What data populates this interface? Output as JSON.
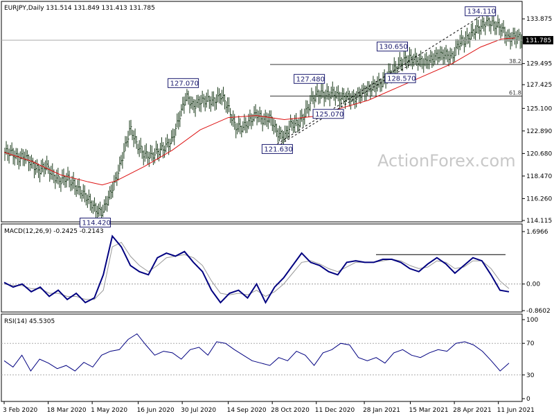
{
  "chart_data": [
    {
      "type": "candlestick",
      "header": "EURJPY,Daily  131.514 131.849 131.413 131.785",
      "symbol": "EURJPY",
      "timeframe": "Daily",
      "last_price": "131.785",
      "y_ticks": [
        "133.875",
        "131.785",
        "129.495",
        "127.425",
        "125.100",
        "122.890",
        "120.680",
        "118.470",
        "116.260",
        "114.115"
      ],
      "ylim": [
        114.115,
        134.5
      ],
      "x_ticks": [
        "3 Feb 2020",
        "18 Mar 2020",
        "1 May 2020",
        "16 Jun 2020",
        "30 Jul 2020",
        "14 Sep 2020",
        "28 Oct 2020",
        "11 Dec 2020",
        "28 Jan 2021",
        "15 Mar 2021",
        "28 Apr 2021",
        "11 Jun 2021"
      ],
      "annotations": [
        {
          "text": "114.420",
          "x": "4 May 2020",
          "y": 114.42
        },
        {
          "text": "127.070",
          "x": "31 Jul 2020",
          "y": 127.07
        },
        {
          "text": "121.630",
          "x": "2 Nov 2020",
          "y": 121.63
        },
        {
          "text": "127.480",
          "x": "4 Dec 2020",
          "y": 127.48
        },
        {
          "text": "125.070",
          "x": "23 Dec 2020",
          "y": 125.07
        },
        {
          "text": "130.650",
          "x": "25 Feb 2021",
          "y": 130.65
        },
        {
          "text": "128.570",
          "x": "5 Mar 2021",
          "y": 128.57
        },
        {
          "text": "134.110",
          "x": "24 May 2021",
          "y": 134.11
        }
      ],
      "fib_levels": [
        {
          "label": "38.2",
          "value": 129.4
        },
        {
          "label": "61.8",
          "value": 126.3
        }
      ],
      "watermark": "ActionForex.com",
      "close_series": [
        {
          "date": "3 Feb 2020",
          "value": 120.8
        },
        {
          "date": "10 Feb 2020",
          "value": 120.2
        },
        {
          "date": "17 Feb 2020",
          "value": 120.4
        },
        {
          "date": "24 Feb 2020",
          "value": 119.6
        },
        {
          "date": "2 Mar 2020",
          "value": 119.0
        },
        {
          "date": "9 Mar 2020",
          "value": 119.5
        },
        {
          "date": "16 Mar 2020",
          "value": 118.5
        },
        {
          "date": "23 Mar 2020",
          "value": 118.0
        },
        {
          "date": "30 Mar 2020",
          "value": 118.3
        },
        {
          "date": "6 Apr 2020",
          "value": 117.6
        },
        {
          "date": "13 Apr 2020",
          "value": 116.9
        },
        {
          "date": "20 Apr 2020",
          "value": 116.2
        },
        {
          "date": "27 Apr 2020",
          "value": 115.2
        },
        {
          "date": "4 May 2020",
          "value": 114.9
        },
        {
          "date": "11 May 2020",
          "value": 116.5
        },
        {
          "date": "18 May 2020",
          "value": 118.2
        },
        {
          "date": "25 May 2020",
          "value": 120.6
        },
        {
          "date": "1 Jun 2020",
          "value": 123.2
        },
        {
          "date": "8 Jun 2020",
          "value": 121.5
        },
        {
          "date": "15 Jun 2020",
          "value": 120.6
        },
        {
          "date": "22 Jun 2020",
          "value": 120.4
        },
        {
          "date": "29 Jun 2020",
          "value": 120.9
        },
        {
          "date": "6 Jul 2020",
          "value": 121.3
        },
        {
          "date": "13 Jul 2020",
          "value": 122.0
        },
        {
          "date": "20 Jul 2020",
          "value": 124.2
        },
        {
          "date": "27 Jul 2020",
          "value": 126.3
        },
        {
          "date": "3 Aug 2020",
          "value": 125.3
        },
        {
          "date": "10 Aug 2020",
          "value": 125.8
        },
        {
          "date": "17 Aug 2020",
          "value": 125.9
        },
        {
          "date": "24 Aug 2020",
          "value": 125.8
        },
        {
          "date": "31 Aug 2020",
          "value": 126.4
        },
        {
          "date": "7 Sep 2020",
          "value": 125.2
        },
        {
          "date": "14 Sep 2020",
          "value": 123.3
        },
        {
          "date": "21 Sep 2020",
          "value": 123.2
        },
        {
          "date": "28 Sep 2020",
          "value": 123.8
        },
        {
          "date": "5 Oct 2020",
          "value": 124.6
        },
        {
          "date": "12 Oct 2020",
          "value": 123.9
        },
        {
          "date": "19 Oct 2020",
          "value": 124.2
        },
        {
          "date": "26 Oct 2020",
          "value": 122.7
        },
        {
          "date": "2 Nov 2020",
          "value": 122.3
        },
        {
          "date": "9 Nov 2020",
          "value": 123.6
        },
        {
          "date": "16 Nov 2020",
          "value": 123.6
        },
        {
          "date": "23 Nov 2020",
          "value": 124.6
        },
        {
          "date": "30 Nov 2020",
          "value": 126.1
        },
        {
          "date": "7 Dec 2020",
          "value": 126.6
        },
        {
          "date": "14 Dec 2020",
          "value": 126.4
        },
        {
          "date": "21 Dec 2020",
          "value": 126.6
        },
        {
          "date": "28 Dec 2020",
          "value": 126.2
        },
        {
          "date": "4 Jan 2021",
          "value": 126.2
        },
        {
          "date": "11 Jan 2021",
          "value": 126.0
        },
        {
          "date": "18 Jan 2021",
          "value": 126.6
        },
        {
          "date": "25 Jan 2021",
          "value": 126.9
        },
        {
          "date": "1 Feb 2021",
          "value": 127.4
        },
        {
          "date": "8 Feb 2021",
          "value": 127.6
        },
        {
          "date": "15 Feb 2021",
          "value": 128.5
        },
        {
          "date": "22 Feb 2021",
          "value": 129.1
        },
        {
          "date": "1 Mar 2021",
          "value": 129.8
        },
        {
          "date": "8 Mar 2021",
          "value": 130.0
        },
        {
          "date": "15 Mar 2021",
          "value": 129.8
        },
        {
          "date": "22 Mar 2021",
          "value": 129.6
        },
        {
          "date": "29 Mar 2021",
          "value": 129.9
        },
        {
          "date": "5 Apr 2021",
          "value": 130.3
        },
        {
          "date": "12 Apr 2021",
          "value": 130.4
        },
        {
          "date": "19 Apr 2021",
          "value": 130.1
        },
        {
          "date": "26 Apr 2021",
          "value": 131.6
        },
        {
          "date": "3 May 2021",
          "value": 131.8
        },
        {
          "date": "10 May 2021",
          "value": 132.6
        },
        {
          "date": "17 May 2021",
          "value": 133.1
        },
        {
          "date": "24 May 2021",
          "value": 133.6
        },
        {
          "date": "31 May 2021",
          "value": 133.3
        },
        {
          "date": "7 Jun 2021",
          "value": 133.0
        },
        {
          "date": "14 Jun 2021",
          "value": 131.9
        },
        {
          "date": "21 Jun 2021",
          "value": 132.2
        },
        {
          "date": "28 Jun 2021",
          "value": 131.8
        }
      ],
      "ma_series": [
        {
          "date": "3 Feb 2020",
          "value": 120.8
        },
        {
          "date": "2 Mar 2020",
          "value": 119.9
        },
        {
          "date": "30 Mar 2020",
          "value": 118.6
        },
        {
          "date": "27 Apr 2020",
          "value": 117.9
        },
        {
          "date": "11 May 2020",
          "value": 117.6
        },
        {
          "date": "25 May 2020",
          "value": 118.0
        },
        {
          "date": "22 Jun 2020",
          "value": 119.4
        },
        {
          "date": "20 Jul 2020",
          "value": 121.0
        },
        {
          "date": "17 Aug 2020",
          "value": 123.0
        },
        {
          "date": "14 Sep 2020",
          "value": 124.2
        },
        {
          "date": "12 Oct 2020",
          "value": 124.4
        },
        {
          "date": "9 Nov 2020",
          "value": 124.0
        },
        {
          "date": "7 Dec 2020",
          "value": 124.3
        },
        {
          "date": "4 Jan 2021",
          "value": 125.1
        },
        {
          "date": "1 Feb 2021",
          "value": 125.9
        },
        {
          "date": "1 Mar 2021",
          "value": 127.1
        },
        {
          "date": "29 Mar 2021",
          "value": 128.3
        },
        {
          "date": "26 Apr 2021",
          "value": 129.5
        },
        {
          "date": "24 May 2021",
          "value": 131.1
        },
        {
          "date": "14 Jun 2021",
          "value": 131.9
        },
        {
          "date": "28 Jun 2021",
          "value": 132.0
        }
      ]
    },
    {
      "type": "line",
      "header": "MACD(12,26,9) -0.2425 -0.2143",
      "y_ticks": [
        "1.6966",
        "0.00",
        "-0.8602"
      ],
      "ylim": [
        -0.8602,
        1.6966
      ],
      "values_label": "0.00",
      "macd_series": [
        0.05,
        -0.1,
        0.0,
        -0.25,
        -0.1,
        -0.4,
        -0.2,
        -0.5,
        -0.3,
        -0.6,
        -0.45,
        0.3,
        1.55,
        1.2,
        0.6,
        0.4,
        0.3,
        0.85,
        1.0,
        0.9,
        1.05,
        0.7,
        0.4,
        -0.2,
        -0.6,
        -0.3,
        -0.2,
        -0.45,
        0.0,
        -0.6,
        -0.1,
        0.2,
        0.6,
        1.0,
        0.7,
        0.6,
        0.4,
        0.3,
        0.7,
        0.75,
        0.7,
        0.7,
        0.8,
        0.8,
        0.7,
        0.5,
        0.4,
        0.65,
        0.85,
        0.65,
        0.35,
        0.6,
        0.85,
        0.75,
        0.3,
        -0.2,
        -0.25
      ],
      "signal_series": [
        0.0,
        -0.05,
        -0.05,
        -0.15,
        -0.15,
        -0.3,
        -0.3,
        -0.4,
        -0.4,
        -0.5,
        -0.5,
        -0.2,
        1.2,
        1.35,
        0.9,
        0.6,
        0.4,
        0.6,
        0.85,
        0.9,
        0.95,
        0.85,
        0.6,
        0.1,
        -0.3,
        -0.35,
        -0.3,
        -0.35,
        -0.2,
        -0.4,
        -0.25,
        0.0,
        0.35,
        0.7,
        0.75,
        0.65,
        0.5,
        0.4,
        0.55,
        0.7,
        0.7,
        0.7,
        0.75,
        0.8,
        0.75,
        0.6,
        0.5,
        0.55,
        0.75,
        0.7,
        0.5,
        0.55,
        0.75,
        0.75,
        0.5,
        0.1,
        -0.15
      ]
    },
    {
      "type": "line",
      "header": "RSI(14) 45.5305",
      "y_ticks": [
        "100",
        "70",
        "30",
        "0"
      ],
      "ylim": [
        0,
        100
      ],
      "rsi_series": [
        48,
        40,
        55,
        35,
        50,
        45,
        38,
        42,
        35,
        46,
        40,
        55,
        60,
        62,
        75,
        82,
        68,
        55,
        60,
        58,
        50,
        62,
        65,
        55,
        72,
        70,
        62,
        55,
        48,
        45,
        42,
        52,
        48,
        60,
        55,
        42,
        58,
        62,
        70,
        68,
        52,
        48,
        52,
        45,
        58,
        62,
        55,
        52,
        58,
        62,
        60,
        70,
        72,
        68,
        60,
        48,
        35,
        45
      ]
    }
  ]
}
